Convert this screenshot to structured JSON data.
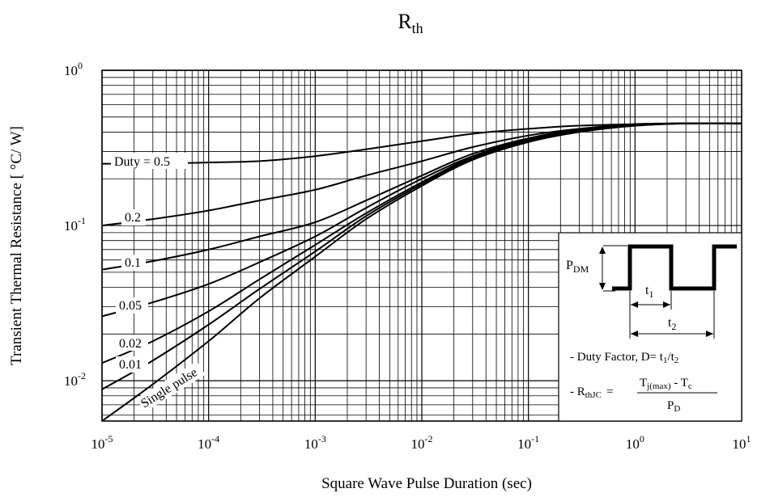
{
  "chart_data": {
    "type": "line",
    "title": {
      "main": "R",
      "sub": "th"
    },
    "xlabel": "Square Wave Pulse Duration (sec)",
    "ylabel": "Transient Thermal Resistance [ °C/ W]",
    "x_scale": "log",
    "y_scale": "log",
    "xlim": [
      1e-05,
      10
    ],
    "ylim": [
      0.0055,
      1
    ],
    "grid": true,
    "x_ticks": [
      {
        "base": "10",
        "exp": "-5"
      },
      {
        "base": "10",
        "exp": "-4"
      },
      {
        "base": "10",
        "exp": "-3"
      },
      {
        "base": "10",
        "exp": "-2"
      },
      {
        "base": "10",
        "exp": "-1"
      },
      {
        "base": "10",
        "exp": "0"
      },
      {
        "base": "10",
        "exp": "1"
      }
    ],
    "y_ticks": [
      {
        "base": "10",
        "exp": "0"
      },
      {
        "base": "10",
        "exp": "-1"
      },
      {
        "base": "10",
        "exp": "-2"
      }
    ],
    "series": [
      {
        "name": "Duty = 0.5",
        "x": [
          1e-05,
          3e-05,
          0.0001,
          0.0003,
          0.001,
          0.003,
          0.01,
          0.03,
          0.1,
          0.3,
          1,
          3,
          10
        ],
        "values": [
          0.25,
          0.25,
          0.255,
          0.26,
          0.28,
          0.31,
          0.35,
          0.39,
          0.42,
          0.44,
          0.45,
          0.455,
          0.455
        ]
      },
      {
        "name": "0.2",
        "x": [
          1e-05,
          3e-05,
          0.0001,
          0.0003,
          0.001,
          0.003,
          0.01,
          0.03,
          0.1,
          0.3,
          1,
          3,
          10
        ],
        "values": [
          0.1,
          0.11,
          0.125,
          0.145,
          0.17,
          0.21,
          0.26,
          0.32,
          0.38,
          0.42,
          0.45,
          0.455,
          0.455
        ]
      },
      {
        "name": "0.1",
        "x": [
          1e-05,
          3e-05,
          0.0001,
          0.0003,
          0.001,
          0.003,
          0.01,
          0.03,
          0.1,
          0.3,
          1,
          3,
          10
        ],
        "values": [
          0.052,
          0.059,
          0.07,
          0.085,
          0.105,
          0.145,
          0.21,
          0.29,
          0.365,
          0.415,
          0.445,
          0.455,
          0.455
        ]
      },
      {
        "name": "0.05",
        "x": [
          1e-05,
          3e-05,
          0.0001,
          0.0003,
          0.001,
          0.003,
          0.01,
          0.03,
          0.1,
          0.3,
          1,
          3,
          10
        ],
        "values": [
          0.026,
          0.032,
          0.042,
          0.058,
          0.085,
          0.13,
          0.2,
          0.28,
          0.36,
          0.41,
          0.445,
          0.455,
          0.455
        ]
      },
      {
        "name": "0.02",
        "x": [
          1e-05,
          3e-05,
          0.0001,
          0.0003,
          0.001,
          0.003,
          0.01,
          0.03,
          0.1,
          0.3,
          1,
          3,
          10
        ],
        "values": [
          0.013,
          0.018,
          0.028,
          0.045,
          0.075,
          0.12,
          0.19,
          0.275,
          0.355,
          0.41,
          0.445,
          0.455,
          0.455
        ]
      },
      {
        "name": "0.01",
        "x": [
          1e-05,
          3e-05,
          0.0001,
          0.0003,
          0.001,
          0.003,
          0.01,
          0.03,
          0.1,
          0.3,
          1,
          3,
          10
        ],
        "values": [
          0.0088,
          0.0135,
          0.023,
          0.039,
          0.068,
          0.115,
          0.185,
          0.27,
          0.35,
          0.405,
          0.44,
          0.455,
          0.455
        ]
      },
      {
        "name": "Single pulse",
        "x": [
          1e-05,
          3e-05,
          0.0001,
          0.0003,
          0.001,
          0.003,
          0.01,
          0.03,
          0.1,
          0.3,
          1,
          3,
          10
        ],
        "values": [
          0.0055,
          0.0095,
          0.018,
          0.034,
          0.063,
          0.11,
          0.18,
          0.265,
          0.345,
          0.4,
          0.44,
          0.455,
          0.455
        ]
      }
    ],
    "inset": {
      "p_label": "P",
      "p_sub": "DM",
      "t1_label": "t",
      "t1_sub": "1",
      "t2_label": "t",
      "t2_sub": "2",
      "duty_text_prefix": "- Duty Factor, D= t",
      "duty_sub1": "1",
      "duty_slash": "/t",
      "duty_sub2": "2",
      "r_prefix": "- R",
      "r_sub": "thJC",
      "r_eq": "=",
      "num_t": "T",
      "num_t_sub": "j(max)",
      "num_minus": " - T",
      "num_c_sub": "c",
      "den_p": "P",
      "den_sub": "D"
    }
  }
}
